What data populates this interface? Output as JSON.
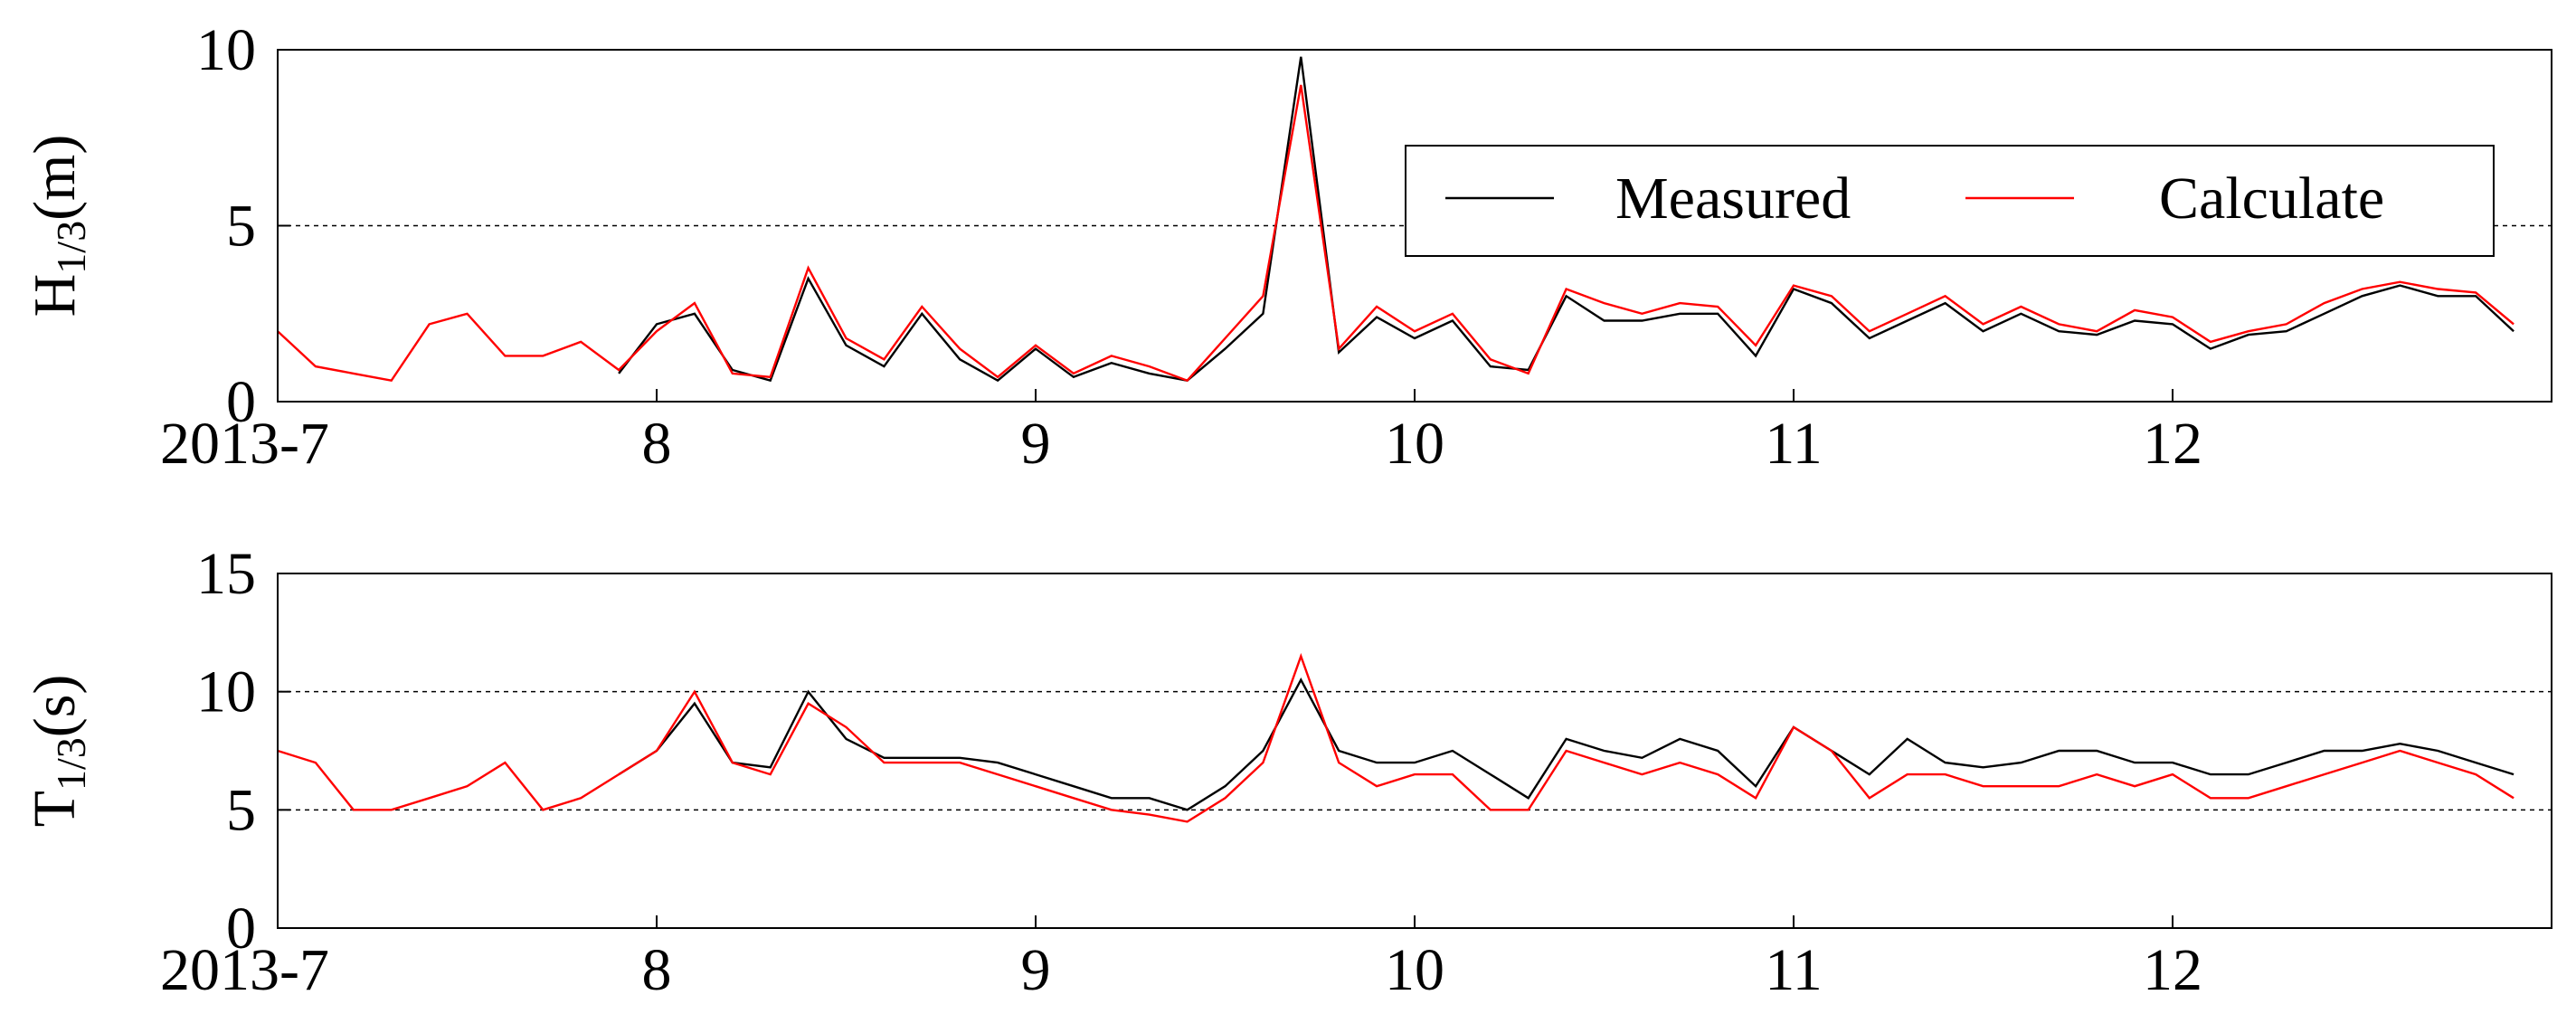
{
  "chart_data": [
    {
      "type": "line",
      "ylabel": [
        "H",
        "1/3",
        "(m)"
      ],
      "xlim": [
        7,
        13
      ],
      "xticks": [
        {
          "value": 7,
          "label": "2013-7"
        },
        8,
        9,
        10,
        11,
        12
      ],
      "ylim": [
        0,
        10
      ],
      "yticks": [
        0,
        5,
        10
      ],
      "grid": true,
      "legend": "upper right",
      "x": [
        7.0,
        7.1,
        7.2,
        7.3,
        7.4,
        7.5,
        7.6,
        7.7,
        7.8,
        7.9,
        8.0,
        8.1,
        8.2,
        8.3,
        8.4,
        8.5,
        8.6,
        8.7,
        8.8,
        8.9,
        9.0,
        9.1,
        9.2,
        9.3,
        9.4,
        9.5,
        9.6,
        9.7,
        9.8,
        9.9,
        10.0,
        10.1,
        10.2,
        10.3,
        10.4,
        10.5,
        10.6,
        10.7,
        10.8,
        10.9,
        11.0,
        11.1,
        11.2,
        11.3,
        11.4,
        11.5,
        11.6,
        11.7,
        11.8,
        11.9,
        12.0,
        12.1,
        12.2,
        12.3,
        12.4,
        12.5,
        12.6,
        12.7,
        12.8,
        12.9
      ],
      "series": [
        {
          "name": "Measured",
          "color": "#000000",
          "values": [
            null,
            null,
            null,
            null,
            null,
            null,
            null,
            null,
            null,
            0.8,
            2.2,
            2.5,
            0.9,
            0.6,
            3.5,
            1.6,
            1.0,
            2.5,
            1.2,
            0.6,
            1.5,
            0.7,
            1.1,
            0.8,
            0.6,
            1.5,
            2.5,
            9.8,
            1.4,
            2.4,
            1.8,
            2.3,
            1.0,
            0.9,
            3.0,
            2.3,
            2.3,
            2.5,
            2.5,
            1.3,
            3.2,
            2.8,
            1.8,
            2.3,
            2.8,
            2.0,
            2.5,
            2.0,
            1.9,
            2.3,
            2.2,
            1.5,
            1.9,
            2.0,
            2.5,
            3.0,
            3.3,
            3.0,
            3.0,
            2.0
          ]
        },
        {
          "name": "Calculate",
          "color": "#ff0000",
          "values": [
            2.0,
            1.0,
            0.8,
            0.6,
            2.2,
            2.5,
            1.3,
            1.3,
            1.7,
            0.9,
            2.0,
            2.8,
            0.8,
            0.7,
            3.8,
            1.8,
            1.2,
            2.7,
            1.5,
            0.7,
            1.6,
            0.8,
            1.3,
            1.0,
            0.6,
            1.8,
            3.0,
            9.0,
            1.5,
            2.7,
            2.0,
            2.5,
            1.2,
            0.8,
            3.2,
            2.8,
            2.5,
            2.8,
            2.7,
            1.6,
            3.3,
            3.0,
            2.0,
            2.5,
            3.0,
            2.2,
            2.7,
            2.2,
            2.0,
            2.6,
            2.4,
            1.7,
            2.0,
            2.2,
            2.8,
            3.2,
            3.4,
            3.2,
            3.1,
            2.2
          ]
        }
      ]
    },
    {
      "type": "line",
      "ylabel": [
        "T",
        "1/3",
        "(s)"
      ],
      "xlim": [
        7,
        13
      ],
      "xticks": [
        {
          "value": 7,
          "label": "2013-7"
        },
        8,
        9,
        10,
        11,
        12
      ],
      "ylim": [
        0,
        15
      ],
      "yticks": [
        0,
        5,
        10,
        15
      ],
      "grid": true,
      "x": [
        7.0,
        7.1,
        7.2,
        7.3,
        7.4,
        7.5,
        7.6,
        7.7,
        7.8,
        7.9,
        8.0,
        8.1,
        8.2,
        8.3,
        8.4,
        8.5,
        8.6,
        8.7,
        8.8,
        8.9,
        9.0,
        9.1,
        9.2,
        9.3,
        9.4,
        9.5,
        9.6,
        9.7,
        9.8,
        9.9,
        10.0,
        10.1,
        10.2,
        10.3,
        10.4,
        10.5,
        10.6,
        10.7,
        10.8,
        10.9,
        11.0,
        11.1,
        11.2,
        11.3,
        11.4,
        11.5,
        11.6,
        11.7,
        11.8,
        11.9,
        12.0,
        12.1,
        12.2,
        12.3,
        12.4,
        12.5,
        12.6,
        12.7,
        12.8,
        12.9
      ],
      "series": [
        {
          "color": "#000000",
          "values": [
            null,
            null,
            null,
            null,
            null,
            null,
            null,
            null,
            null,
            6.5,
            7.5,
            9.5,
            7.0,
            6.8,
            10.0,
            8.0,
            7.2,
            7.2,
            7.2,
            7.0,
            6.5,
            6.0,
            5.5,
            5.5,
            5.0,
            6.0,
            7.5,
            10.5,
            7.5,
            7.0,
            7.0,
            7.5,
            6.5,
            5.5,
            8.0,
            7.5,
            7.2,
            8.0,
            7.5,
            6.0,
            8.5,
            7.5,
            6.5,
            8.0,
            7.0,
            6.8,
            7.0,
            7.5,
            7.5,
            7.0,
            7.0,
            6.5,
            6.5,
            7.0,
            7.5,
            7.5,
            7.8,
            7.5,
            7.0,
            6.5
          ]
        },
        {
          "color": "#ff0000",
          "values": [
            7.5,
            7.0,
            5.0,
            5.0,
            5.5,
            6.0,
            7.0,
            5.0,
            5.5,
            6.5,
            7.5,
            10.0,
            7.0,
            6.5,
            9.5,
            8.5,
            7.0,
            7.0,
            7.0,
            6.5,
            6.0,
            5.5,
            5.0,
            4.8,
            4.5,
            5.5,
            7.0,
            11.5,
            7.0,
            6.0,
            6.5,
            6.5,
            5.0,
            5.0,
            7.5,
            7.0,
            6.5,
            7.0,
            6.5,
            5.5,
            8.5,
            7.5,
            5.5,
            6.5,
            6.5,
            6.0,
            6.0,
            6.0,
            6.5,
            6.0,
            6.5,
            5.5,
            5.5,
            6.0,
            6.5,
            7.0,
            7.5,
            7.0,
            6.5,
            5.5
          ]
        }
      ]
    }
  ]
}
